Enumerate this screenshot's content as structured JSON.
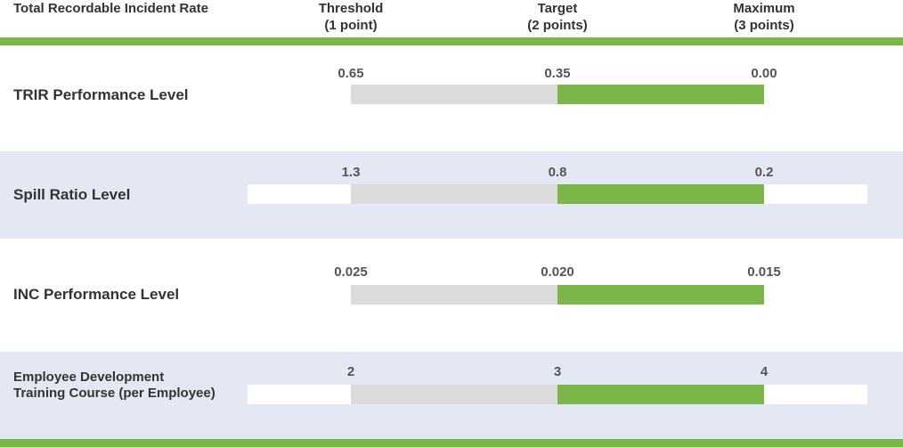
{
  "header": {
    "label": "Total Recordable Incident Rate",
    "columns": [
      {
        "line1": "Threshold",
        "line2": "(1 point)"
      },
      {
        "line1": "Target",
        "line2": "(2 points)"
      },
      {
        "line1": "Maximum",
        "line2": "(3 points)"
      }
    ]
  },
  "colors": {
    "accent_green": "#7ab648",
    "grey_segment": "#dcdcdc",
    "row_shade": "#e4e8f4"
  },
  "chart_data": {
    "type": "bar",
    "title": "Total Recordable Incident Rate",
    "legend": [
      "Threshold (1 point)",
      "Target (2 points)",
      "Maximum (3 points)"
    ],
    "rows": [
      {
        "label": "TRIR Performance Level",
        "threshold": "0.65",
        "target": "0.35",
        "maximum": "0.00"
      },
      {
        "label": "Spill Ratio Level",
        "threshold": "1.3",
        "target": "0.8",
        "maximum": "0.2"
      },
      {
        "label": "INC Performance Level",
        "threshold": "0.025",
        "target": "0.020",
        "maximum": "0.015"
      },
      {
        "label": "Employee Development Training Course (per Employee)",
        "threshold": "2",
        "target": "3",
        "maximum": "4"
      }
    ]
  }
}
